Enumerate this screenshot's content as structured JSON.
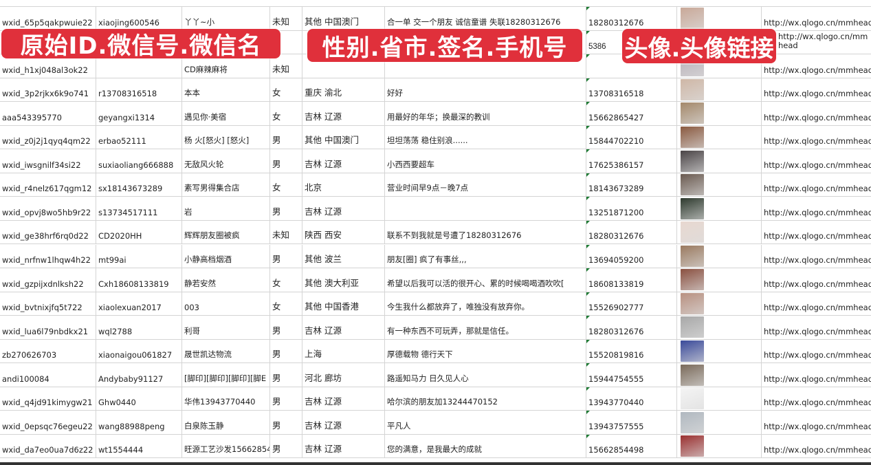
{
  "overlay_labels": [
    "原始ID.微信号.微信名",
    "性别.省市.签名.手机号",
    "头像.头像链接"
  ],
  "colors": {
    "label_bg": "#e0303b",
    "label_text": "#ffffff",
    "grid": "#d4d4d4",
    "text": "#222222",
    "cell_marker": "#1e7b34"
  },
  "rows": [
    {
      "id": "wxid_65p5qakpwuie22",
      "wechat": "xiaojing600546",
      "name": "丫丫~小",
      "gender": "未知",
      "region": "其他 中国澳门",
      "signature": "合一单 交一个朋友 诚信童谱 失联18280312676",
      "phone": "18280312676",
      "avatar": "#c9a898",
      "url": "http://wx.qlogo.cn/mmhead"
    },
    {
      "id": "",
      "wechat": "",
      "name": "",
      "gender": "",
      "region": "",
      "signature": "",
      "phone": "5386",
      "avatar": "#7a86b0",
      "url": "http://wx.qlogo.cn/mmhead"
    },
    {
      "id": "wxid_h1xj048al3ok22",
      "wechat": "",
      "name": "CD麻辣麻将",
      "gender": "未知",
      "region": "",
      "signature": "",
      "phone": "",
      "avatar": "#b8b0b8",
      "url": "http://wx.qlogo.cn/mmhead"
    },
    {
      "id": "wxid_3p2rjkx6k9o741",
      "wechat": "r13708316518",
      "name": "本本",
      "gender": "女",
      "region": "重庆 渝北",
      "signature": "好好",
      "phone": "13708316518",
      "avatar": "#cfb7a6",
      "url": "http://wx.qlogo.cn/mmhead"
    },
    {
      "id": "aaa543395770",
      "wechat": "geyangxi1314",
      "name": "遇见你·美宿",
      "gender": "女",
      "region": "吉林 辽源",
      "signature": "用最好的年华；换最深的教训",
      "phone": "15662865427",
      "avatar": "#a4886a",
      "url": "http://wx.qlogo.cn/mmhead"
    },
    {
      "id": "wxid_z0j2j1qyq4qm22",
      "wechat": "erbao52111",
      "name": "杨 火[怒火] [怒火]",
      "gender": "男",
      "region": "其他 中国澳门",
      "signature": "坦坦荡荡 稳住别浪......",
      "phone": "15844702210",
      "avatar": "#8a5a40",
      "url": "http://wx.qlogo.cn/mmhead"
    },
    {
      "id": "wxid_iwsgnilf34si22",
      "wechat": "suxiaoliang666888",
      "name": "无敌风火轮",
      "gender": "男",
      "region": "吉林 辽源",
      "signature": "小西西要超车",
      "phone": "17625386157",
      "avatar": "#4a4446",
      "url": "http://wx.qlogo.cn/mmhead"
    },
    {
      "id": "wxid_r4nelz617qgm12",
      "wechat": "sx18143673289",
      "name": "素写男得集合店",
      "gender": "女",
      "region": "北京",
      "signature": "营业时间早9点－晚7点",
      "phone": "18143673289",
      "avatar": "#6a5a50",
      "url": "http://wx.qlogo.cn/mmhead"
    },
    {
      "id": "wxid_opvj8wo5hb9r22",
      "wechat": "s13734517111",
      "name": "岩",
      "gender": "男",
      "region": "吉林 辽源",
      "signature": "",
      "phone": "13251871200",
      "avatar": "#2e3a2e",
      "url": "http://wx.qlogo.cn/mmhead"
    },
    {
      "id": "wxid_ge38hrf6rq0d22",
      "wechat": "CD2020HH",
      "name": "辉辉朋友圈被疯",
      "gender": "未知",
      "region": "陕西 西安",
      "signature": "联系不到我就是号遭了18280312676",
      "phone": "18280312676",
      "avatar": "#e8d8d0",
      "url": "http://wx.qlogo.cn/mmhead"
    },
    {
      "id": "wxid_nrfnw1lhqw4h22",
      "wechat": "mt99ai",
      "name": "小静高档烟酒",
      "gender": "男",
      "region": "其他 波兰",
      "signature": "朋友[圈] 疯了有事丝,,,",
      "phone": "13694059200",
      "avatar": "#9a7a60",
      "url": "http://wx.qlogo.cn/mmhead"
    },
    {
      "id": "wxid_gzpijxdnlksh22",
      "wechat": "Cxh18608133819",
      "name": "静若安然",
      "gender": "女",
      "region": "其他 澳大利亚",
      "signature": "希望以后我可以活的很开心、累的时候喝喝酒吹吹[",
      "phone": "18608133819",
      "avatar": "#8a5040",
      "url": "http://wx.qlogo.cn/mmhead"
    },
    {
      "id": "wxid_bvtnixjfq5t722",
      "wechat": "xiaolexuan2017",
      "name": "003",
      "gender": "女",
      "region": "其他 中国香港",
      "signature": "今生我什么都放弃了，唯独没有放弃你。",
      "phone": "15526902777",
      "avatar": "#b89080",
      "url": "http://wx.qlogo.cn/mmhead"
    },
    {
      "id": "wxid_lua6l79nbdkx21",
      "wechat": "wql2788",
      "name": "利哥",
      "gender": "男",
      "region": "吉林 辽源",
      "signature": "有一种东西不可玩弄，那就是信任。",
      "phone": "18280312676",
      "avatar": "#a8a8a8",
      "url": "http://wx.qlogo.cn/mmhead"
    },
    {
      "id": "zb270626703",
      "wechat": "xiaonaigou061827",
      "name": "晟世凯达物流",
      "gender": "男",
      "region": "上海",
      "signature": "厚德载物 德行天下",
      "phone": "15520819816",
      "avatar": "#3a4a9a",
      "url": "http://wx.qlogo.cn/mmhead"
    },
    {
      "id": "andi100084",
      "wechat": "Andybaby91127",
      "name": "[脚印][脚印][脚印][脚E",
      "gender": "男",
      "region": "河北 廊坊",
      "signature": "路遥知马力 日久见人心",
      "phone": "15944754555",
      "avatar": "#7a6a5a",
      "url": "http://wx.qlogo.cn/mmhead"
    },
    {
      "id": "wxid_q4jd91kimygw21",
      "wechat": "Ghw0440",
      "name": "华伟13943770440",
      "gender": "男",
      "region": "吉林 辽源",
      "signature": "哈尔滨的朋友加13244470152",
      "phone": "13943770440",
      "avatar": "#f4f4f4",
      "url": "http://wx.qlogo.cn/mmhead"
    },
    {
      "id": "wxid_0epsqc76egeu22",
      "wechat": "wang88988peng",
      "name": "白泉陈玉静",
      "gender": "男",
      "region": "吉林 辽源",
      "signature": "平凡人",
      "phone": "13943757555",
      "avatar": "#b0b8c0",
      "url": "http://wx.qlogo.cn/mmhead"
    },
    {
      "id": "wxid_da7eo0ua7d6z22",
      "wechat": "wt1554444",
      "name": "旺源工艺沙发15662854",
      "gender": "男",
      "region": "吉林 辽源",
      "signature": "您的满意，是我最大的成就",
      "phone": "15662854498",
      "avatar": "#9a3030",
      "url": "http://wx.qlogo.cn/mmhead"
    }
  ]
}
